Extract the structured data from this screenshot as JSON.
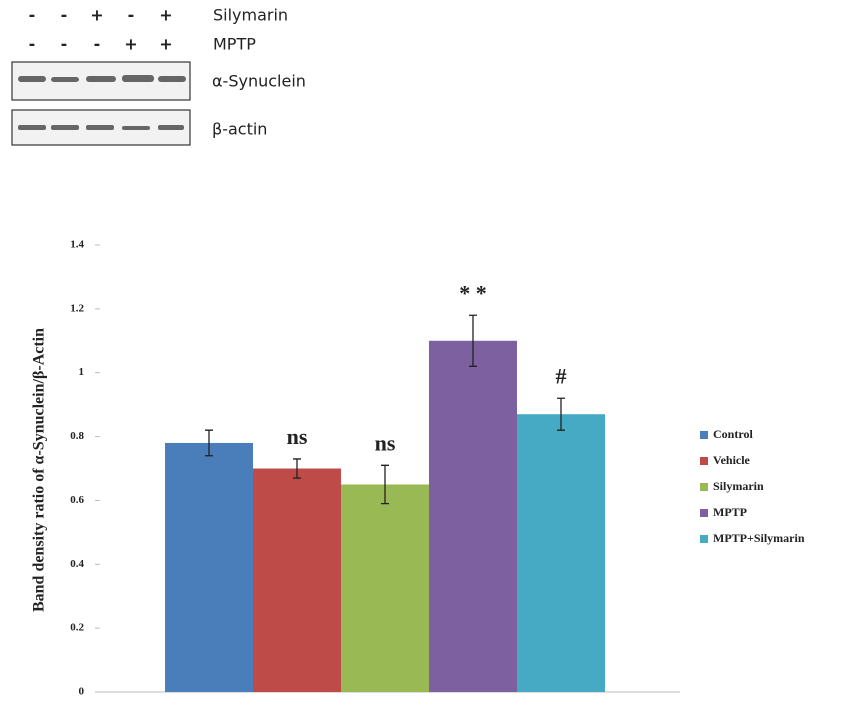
{
  "blot": {
    "rows": [
      {
        "label": "Silymarin",
        "signs": [
          "-",
          "-",
          "+",
          "-",
          "+"
        ]
      },
      {
        "label": "MPTP",
        "signs": [
          "-",
          "-",
          "-",
          "+",
          "+"
        ]
      }
    ],
    "bands": [
      "α-Synuclein",
      "β-actin"
    ]
  },
  "chart_data": {
    "type": "bar",
    "y_label": "Band density ratio of α-Synuclein/β-Actin",
    "categories": [
      null
    ],
    "series": [
      {
        "name": "Control",
        "color": "#4a7ebb",
        "values": [
          0.78
        ],
        "errors": [
          0.04
        ]
      },
      {
        "name": "Vehicle",
        "color": "#be4b48",
        "values": [
          0.7
        ],
        "errors": [
          0.03
        ],
        "annotation": "ns"
      },
      {
        "name": "Silymarin",
        "color": "#98b954",
        "values": [
          0.65
        ],
        "errors": [
          0.06
        ],
        "annotation": "ns"
      },
      {
        "name": "MPTP",
        "color": "#7d60a0",
        "values": [
          1.1
        ],
        "errors": [
          0.08
        ],
        "annotation": "* *"
      },
      {
        "name": "MPTP+Silymarin",
        "color": "#46aac5",
        "values": [
          0.87
        ],
        "errors": [
          0.05
        ],
        "annotation": "#"
      }
    ],
    "ylim": [
      0,
      1.4
    ],
    "yticks": [
      0,
      0.2,
      0.4,
      0.6,
      0.8,
      1,
      1.2,
      1.4
    ],
    "legend": "right"
  }
}
